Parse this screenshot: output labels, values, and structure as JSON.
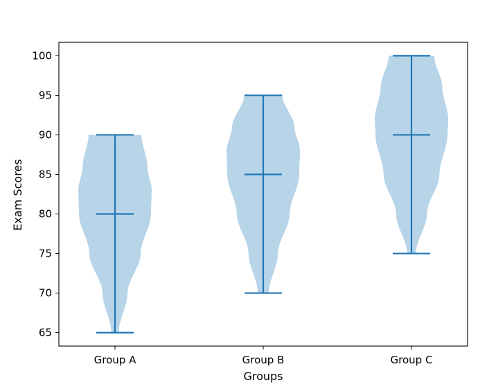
{
  "chart_data": {
    "type": "violin",
    "title": "",
    "xlabel": "Groups",
    "ylabel": "Exam Scores",
    "categories": [
      "Group A",
      "Group B",
      "Group C"
    ],
    "ylim": [
      63.3,
      101.7
    ],
    "yticks": [
      65,
      70,
      75,
      80,
      85,
      90,
      95,
      100
    ],
    "ytick_labels": [
      "65",
      "70",
      "75",
      "80",
      "85",
      "90",
      "95",
      "100"
    ],
    "grid": false,
    "colors": {
      "body": "#b8d4e8",
      "stat_lines": "#1f77b4",
      "axis": "#000000"
    },
    "groups": [
      {
        "name": "Group A",
        "min": 65,
        "median": 80,
        "max": 90,
        "density_profile": [
          [
            65,
            0.1
          ],
          [
            70,
            0.34
          ],
          [
            75,
            0.7
          ],
          [
            80,
            0.98
          ],
          [
            83,
            1.0
          ],
          [
            86,
            0.88
          ],
          [
            90,
            0.72
          ]
        ]
      },
      {
        "name": "Group B",
        "min": 70,
        "median": 85,
        "max": 95,
        "density_profile": [
          [
            70,
            0.15
          ],
          [
            75,
            0.4
          ],
          [
            80,
            0.72
          ],
          [
            85,
            0.98
          ],
          [
            88,
            1.0
          ],
          [
            91,
            0.85
          ],
          [
            95,
            0.52
          ]
        ]
      },
      {
        "name": "Group C",
        "min": 75,
        "median": 90,
        "max": 100,
        "density_profile": [
          [
            75,
            0.12
          ],
          [
            80,
            0.42
          ],
          [
            85,
            0.76
          ],
          [
            90,
            0.98
          ],
          [
            92,
            1.0
          ],
          [
            96,
            0.84
          ],
          [
            100,
            0.62
          ]
        ]
      }
    ]
  }
}
